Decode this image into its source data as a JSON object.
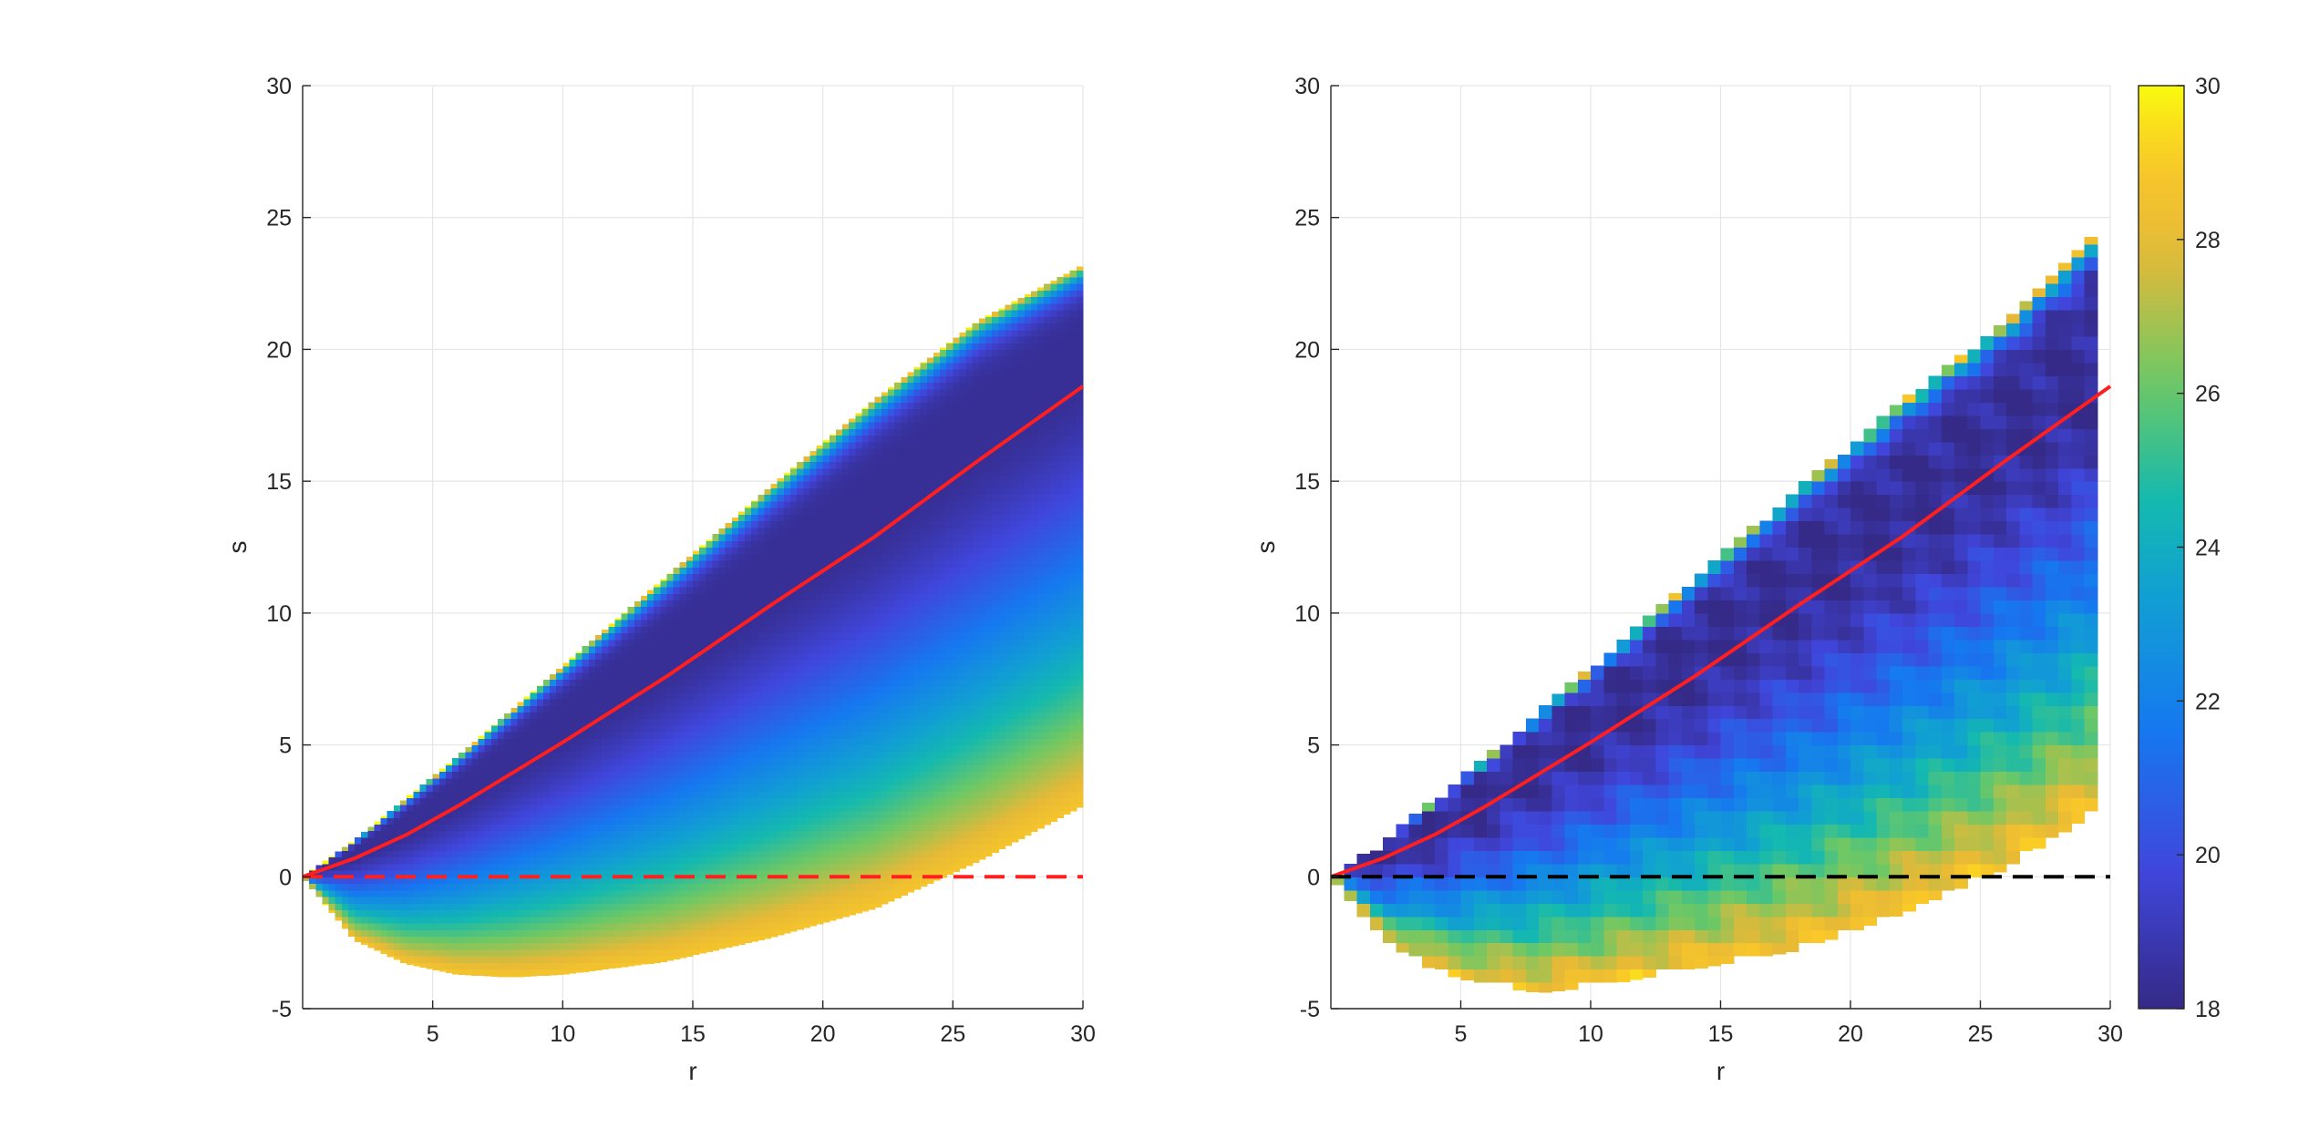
{
  "chart_data": [
    {
      "type": "heatmap",
      "panel": "left",
      "xlabel": "r",
      "ylabel": "s",
      "xlim": [
        0,
        30
      ],
      "ylim": [
        -5,
        30
      ],
      "xticks": [
        "5",
        "10",
        "15",
        "20",
        "25",
        "30"
      ],
      "yticks": [
        "-5",
        "0",
        "5",
        "10",
        "15",
        "20",
        "25",
        "30"
      ],
      "grid": true,
      "region": {
        "r": [
          0,
          2,
          4,
          6,
          8,
          10,
          14,
          18,
          22,
          26,
          30
        ],
        "s_upper": [
          0,
          1.4,
          3.0,
          4.6,
          6.3,
          8.0,
          11.4,
          14.8,
          18.1,
          21.1,
          23.2
        ],
        "s_lower": [
          0,
          -2.4,
          -3.3,
          -3.7,
          -3.8,
          -3.7,
          -3.2,
          -2.3,
          -1.2,
          0.6,
          2.7
        ]
      },
      "color_scale": [
        18,
        30
      ],
      "series": [
        {
          "style": "solid",
          "color": "#ff1f1f",
          "x": [
            0,
            2,
            4,
            6,
            8,
            10,
            14,
            18,
            22,
            26,
            30
          ],
          "y": [
            0,
            0.7,
            1.6,
            2.7,
            3.9,
            5.1,
            7.6,
            10.3,
            12.9,
            15.8,
            18.6
          ]
        },
        {
          "style": "dashed",
          "color": "#ff1f1f",
          "x": [
            0,
            30
          ],
          "y": [
            0,
            0
          ]
        }
      ]
    },
    {
      "type": "heatmap",
      "panel": "right",
      "xlabel": "r",
      "ylabel": "s",
      "xlim": [
        0,
        30
      ],
      "ylim": [
        -5,
        30
      ],
      "xticks": [
        "5",
        "10",
        "15",
        "20",
        "25",
        "30"
      ],
      "yticks": [
        "-5",
        "0",
        "5",
        "10",
        "15",
        "20",
        "25",
        "30"
      ],
      "grid": true,
      "cell_size": 0.5,
      "region": {
        "r": [
          0,
          2,
          4,
          6,
          8,
          10,
          14,
          18,
          22,
          26,
          29.5
        ],
        "s_upper": [
          0,
          1.4,
          3.0,
          4.6,
          6.3,
          8.0,
          11.4,
          14.8,
          18.1,
          21.1,
          24.5
        ],
        "s_lower": [
          0,
          -2.4,
          -3.6,
          -4.1,
          -4.4,
          -4.2,
          -3.5,
          -2.8,
          -1.4,
          0.3,
          2.5
        ]
      },
      "color_scale": [
        18,
        30
      ],
      "colorbar": {
        "ticks": [
          "18",
          "20",
          "22",
          "24",
          "26",
          "28",
          "30"
        ]
      },
      "series": [
        {
          "style": "solid",
          "color": "#ff1f1f",
          "x": [
            0,
            2,
            4,
            6,
            8,
            10,
            14,
            18,
            22,
            26,
            30
          ],
          "y": [
            0,
            0.7,
            1.6,
            2.7,
            3.9,
            5.1,
            7.6,
            10.3,
            12.9,
            15.8,
            18.6
          ]
        },
        {
          "style": "dashed",
          "color": "#000000",
          "x": [
            0,
            30
          ],
          "y": [
            0,
            0
          ]
        }
      ]
    }
  ]
}
